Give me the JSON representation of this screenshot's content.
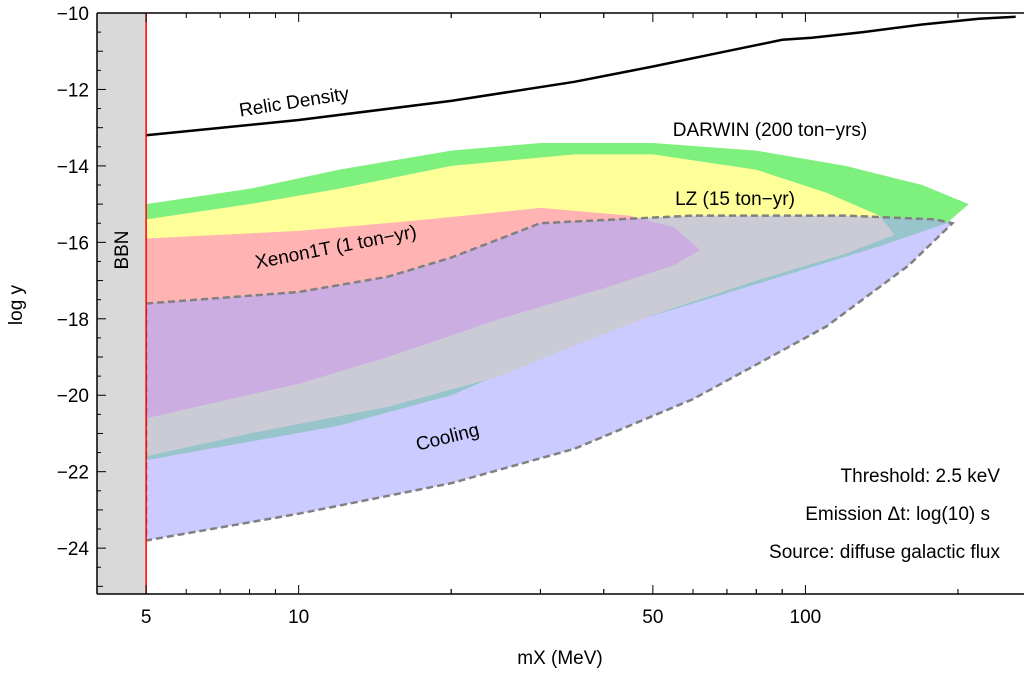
{
  "chart_data": {
    "type": "area",
    "xlabel": "mX (MeV)",
    "ylabel": "log y",
    "xscale": "log",
    "xlim": [
      4.0,
      270
    ],
    "ylim": [
      -25.2,
      -10
    ],
    "x_ticks": [
      5,
      10,
      50,
      100
    ],
    "y_ticks": [
      -10,
      -12,
      -14,
      -16,
      -18,
      -20,
      -22,
      -24
    ],
    "colors": {
      "darwin": "#7ef07e",
      "lz": "#ffff99",
      "xenon": "#ffb3b3",
      "cooling": "#a8a8ff",
      "bbn": "#d9d9d9",
      "bbn_edge": "#ff0000",
      "relic": "#000000",
      "dashed": "#808080"
    },
    "bbn": {
      "label": "BBN",
      "x_max": 5
    },
    "series": [
      {
        "name": "DARWIN (200 ton−yrs)",
        "points": [
          [
            5,
            -15.0
          ],
          [
            8,
            -14.6
          ],
          [
            12,
            -14.1
          ],
          [
            20,
            -13.6
          ],
          [
            30,
            -13.4
          ],
          [
            50,
            -13.4
          ],
          [
            80,
            -13.6
          ],
          [
            120,
            -14.0
          ],
          [
            170,
            -14.5
          ],
          [
            210,
            -15.0
          ],
          [
            190,
            -15.5
          ],
          [
            140,
            -16.1
          ],
          [
            100,
            -16.7
          ],
          [
            60,
            -17.6
          ],
          [
            40,
            -18.3
          ],
          [
            30,
            -19.0
          ],
          [
            20,
            -20.0
          ],
          [
            12,
            -20.8
          ],
          [
            5,
            -21.7
          ]
        ]
      },
      {
        "name": "LZ (15 ton−yr)",
        "points": [
          [
            5,
            -15.4
          ],
          [
            8,
            -15.0
          ],
          [
            12,
            -14.6
          ],
          [
            20,
            -14.0
          ],
          [
            35,
            -13.7
          ],
          [
            50,
            -13.7
          ],
          [
            80,
            -14.1
          ],
          [
            110,
            -14.7
          ],
          [
            140,
            -15.3
          ],
          [
            150,
            -15.8
          ],
          [
            120,
            -16.3
          ],
          [
            80,
            -17.0
          ],
          [
            50,
            -17.9
          ],
          [
            35,
            -18.7
          ],
          [
            25,
            -19.5
          ],
          [
            15,
            -20.3
          ],
          [
            8,
            -21.0
          ],
          [
            5,
            -21.6
          ]
        ]
      },
      {
        "name": "Xenon1T (1 ton−yr)",
        "points": [
          [
            5,
            -15.9
          ],
          [
            10,
            -15.7
          ],
          [
            18,
            -15.4
          ],
          [
            30,
            -15.1
          ],
          [
            45,
            -15.3
          ],
          [
            55,
            -15.6
          ],
          [
            62,
            -16.2
          ],
          [
            55,
            -16.6
          ],
          [
            40,
            -17.2
          ],
          [
            25,
            -18.0
          ],
          [
            15,
            -19.0
          ],
          [
            10,
            -19.7
          ],
          [
            5,
            -20.6
          ]
        ]
      },
      {
        "name": "Cooling",
        "points": [
          [
            5,
            -17.6
          ],
          [
            10,
            -17.3
          ],
          [
            15,
            -16.9
          ],
          [
            20,
            -16.4
          ],
          [
            30,
            -15.5
          ],
          [
            60,
            -15.3
          ],
          [
            120,
            -15.3
          ],
          [
            180,
            -15.4
          ],
          [
            195,
            -15.5
          ],
          [
            160,
            -16.6
          ],
          [
            110,
            -18.2
          ],
          [
            60,
            -20.1
          ],
          [
            35,
            -21.4
          ],
          [
            20,
            -22.3
          ],
          [
            10,
            -23.1
          ],
          [
            5,
            -23.8
          ]
        ]
      },
      {
        "name": "Relic Density",
        "points": [
          [
            5,
            -13.2
          ],
          [
            10,
            -12.8
          ],
          [
            20,
            -12.3
          ],
          [
            35,
            -11.8
          ],
          [
            50,
            -11.4
          ],
          [
            70,
            -11.0
          ],
          [
            90,
            -10.7
          ],
          [
            103,
            -10.65
          ],
          [
            130,
            -10.5
          ],
          [
            170,
            -10.3
          ],
          [
            220,
            -10.15
          ],
          [
            260,
            -10.1
          ]
        ]
      }
    ],
    "annotations": {
      "darwin_label": "DARWIN (200 ton−yrs)",
      "lz_label": "LZ (15 ton−yr)",
      "xenon_label": "Xenon1T (1 ton−yr)",
      "cooling_label": "Cooling",
      "relic_label": "Relic Density",
      "bbn_label": "BBN",
      "threshold": "Threshold: 2.5 keV",
      "emission": "Emission Δt: log(10) s",
      "source": "Source: diffuse galactic flux"
    }
  }
}
